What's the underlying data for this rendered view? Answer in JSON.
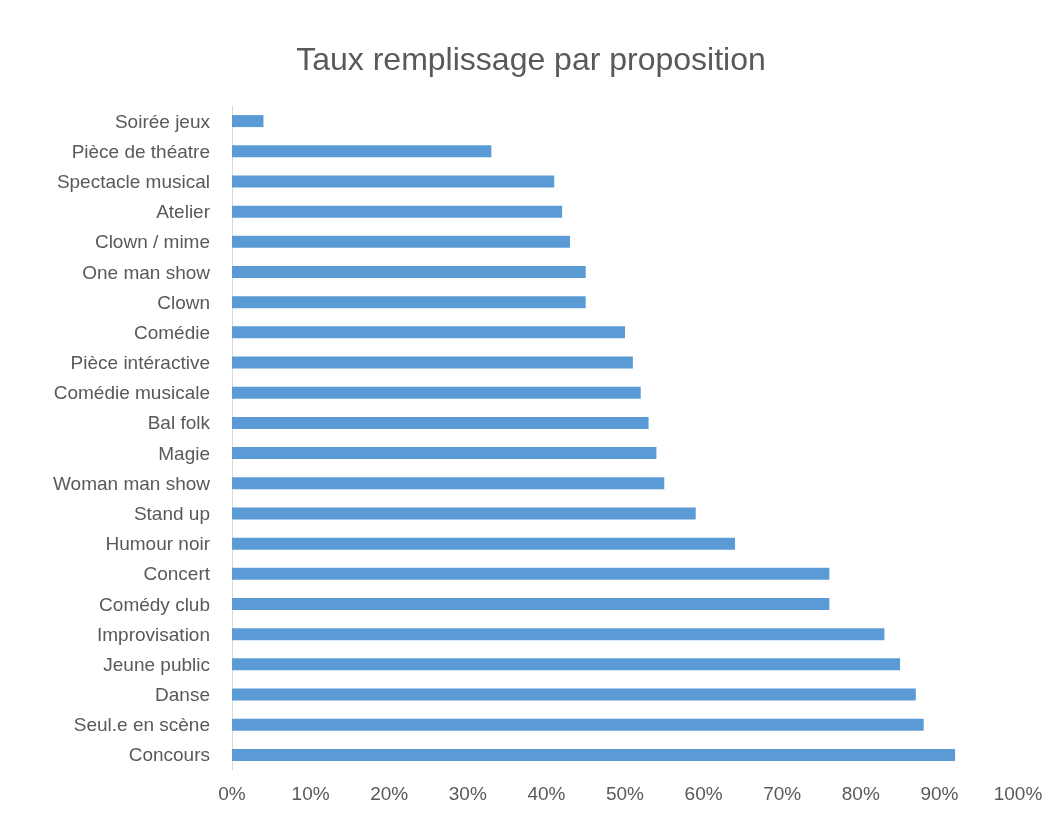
{
  "chart_data": {
    "type": "bar",
    "orientation": "horizontal",
    "title": "Taux remplissage par proposition",
    "categories": [
      "Soirée jeux",
      "Pièce de théatre",
      "Spectacle musical",
      "Atelier",
      "Clown / mime",
      "One man show",
      "Clown",
      "Comédie",
      "Pièce intéractive",
      "Comédie musicale",
      "Bal folk",
      "Magie",
      "Woman man show",
      "Stand up",
      "Humour noir",
      "Concert",
      "Comédy club",
      "Improvisation",
      "Jeune public",
      "Danse",
      "Seul.e en scène",
      "Concours"
    ],
    "values": [
      4,
      33,
      41,
      42,
      43,
      45,
      45,
      50,
      51,
      52,
      53,
      54,
      55,
      59,
      64,
      76,
      76,
      83,
      85,
      87,
      88,
      92
    ],
    "color": "#5b9bd5",
    "xlim": [
      0,
      100
    ],
    "xticks": [
      {
        "value": 0,
        "label": "0%"
      },
      {
        "value": 10,
        "label": "10%"
      },
      {
        "value": 20,
        "label": "20%"
      },
      {
        "value": 30,
        "label": "30%"
      },
      {
        "value": 40,
        "label": "40%"
      },
      {
        "value": 50,
        "label": "50%"
      },
      {
        "value": 60,
        "label": "60%"
      },
      {
        "value": 70,
        "label": "70%"
      },
      {
        "value": 80,
        "label": "80%"
      },
      {
        "value": 90,
        "label": "90%"
      },
      {
        "value": 100,
        "label": "100%"
      }
    ],
    "grid": false
  }
}
